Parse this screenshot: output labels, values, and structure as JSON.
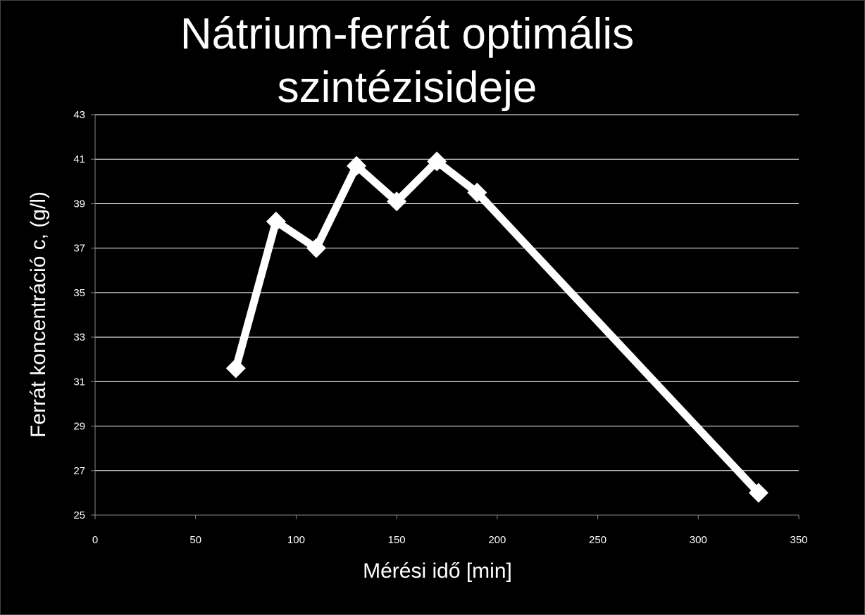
{
  "chart_data": {
    "type": "line",
    "title_lines": [
      "Nátrium-ferrát optimális",
      "szintézisideje"
    ],
    "xlabel": "Mérési idő [min]",
    "ylabel": "Ferrát koncentráció c, (g/l)",
    "xlim": [
      0,
      350
    ],
    "ylim": [
      25,
      43
    ],
    "xticks": [
      "0",
      "50",
      "100",
      "150",
      "200",
      "250",
      "300",
      "350"
    ],
    "yticks": [
      "25",
      "27",
      "29",
      "31",
      "33",
      "35",
      "37",
      "39",
      "41",
      "43"
    ],
    "grid": "horizontal",
    "legend": "none",
    "series": [
      {
        "x": [
          70,
          90,
          110,
          130,
          150,
          170,
          190,
          330
        ],
        "y": [
          31.6,
          38.2,
          37.0,
          40.7,
          39.1,
          40.9,
          39.5,
          26.0
        ],
        "color": "#ffffff",
        "marker": "diamond"
      }
    ]
  }
}
